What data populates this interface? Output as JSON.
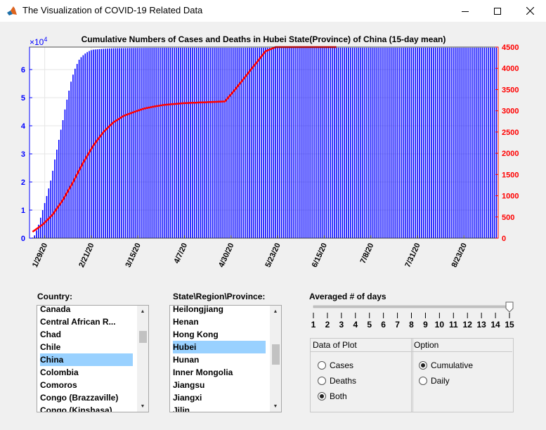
{
  "window": {
    "title": "The Visualization of COVID-19 Related Data"
  },
  "plot": {
    "title": "Cumulative Numbers of Cases and Deaths in Hubei State(Province) of China (15-day mean)",
    "left_axis_exponent": "×10",
    "left_axis_exponent_power": "4",
    "colors": {
      "cases": "#0000ff",
      "deaths": "#ff0000"
    }
  },
  "chart_data": {
    "type": "bar",
    "xlabel": "",
    "x_tick_labels": [
      "1/29/20",
      "2/21/20",
      "3/15/20",
      "4/7/20",
      "4/30/20",
      "5/23/20",
      "6/15/20",
      "7/8/20",
      "7/31/20",
      "8/23/20"
    ],
    "left_yticks": [
      "0",
      "1",
      "2",
      "3",
      "4",
      "5",
      "6"
    ],
    "right_yticks": [
      "0",
      "500",
      "1000",
      "1500",
      "2000",
      "2500",
      "3000",
      "3500",
      "4000",
      "4500"
    ],
    "left_ylim": [
      0,
      68000
    ],
    "right_ylim": [
      0,
      4500
    ],
    "series": [
      {
        "axis": "left",
        "type": "bar",
        "x": [
          0,
          1,
          2,
          3,
          4,
          5,
          6,
          7,
          8,
          9,
          10,
          11,
          12,
          13,
          14,
          15,
          16,
          17,
          18,
          19,
          20,
          21,
          22,
          23,
          24,
          25,
          26,
          27,
          28,
          29,
          30,
          35,
          40,
          50,
          60,
          230
        ],
        "values": [
          200,
          1000,
          2800,
          4800,
          7300,
          10000,
          12500,
          15000,
          17700,
          20500,
          24000,
          28000,
          31500,
          35000,
          38600,
          42000,
          45800,
          49300,
          52500,
          55700,
          58200,
          60300,
          62000,
          63500,
          64400,
          65100,
          65700,
          66200,
          66600,
          66900,
          67100,
          67400,
          67600,
          67700,
          67750,
          67800
        ]
      },
      {
        "axis": "right",
        "type": "line",
        "x": [
          0,
          5,
          10,
          15,
          20,
          25,
          30,
          35,
          40,
          45,
          50,
          55,
          60,
          65,
          70,
          75,
          80,
          85,
          90,
          95,
          100,
          105,
          110,
          115,
          120,
          125,
          130,
          135,
          140,
          145,
          150
        ],
        "values": [
          150,
          320,
          560,
          900,
          1320,
          1780,
          2180,
          2500,
          2730,
          2880,
          2970,
          3050,
          3100,
          3140,
          3160,
          3180,
          3190,
          3200,
          3210,
          3220,
          3500,
          3800,
          4100,
          4400,
          4500,
          4500,
          4500,
          4500,
          4500,
          4500,
          4500
        ]
      }
    ]
  },
  "country": {
    "label": "Country:",
    "items": [
      "Canada",
      "Central African R...",
      "Chad",
      "Chile",
      "China",
      "Colombia",
      "Comoros",
      "Congo (Brazzaville)",
      "Congo (Kinshasa)"
    ],
    "selected": "China"
  },
  "state": {
    "label": "State\\Region\\Province:",
    "items": [
      "Heilongjiang",
      "Henan",
      "Hong Kong",
      "Hubei",
      "Hunan",
      "Inner Mongolia",
      "Jiangsu",
      "Jiangxi",
      "Jilin"
    ],
    "selected": "Hubei"
  },
  "slider": {
    "label": "Averaged # of days",
    "ticks": [
      "1",
      "2",
      "3",
      "4",
      "5",
      "6",
      "7",
      "8",
      "9",
      "10",
      "11",
      "12",
      "13",
      "14",
      "15"
    ],
    "value": 15,
    "min": 1,
    "max": 15
  },
  "data_panel": {
    "title": "Data of  Plot",
    "options": [
      "Cases",
      "Deaths",
      "Both"
    ],
    "selected": "Both"
  },
  "option_panel": {
    "title": "Option",
    "options": [
      "Cumulative",
      "Daily"
    ],
    "selected": "Cumulative"
  }
}
